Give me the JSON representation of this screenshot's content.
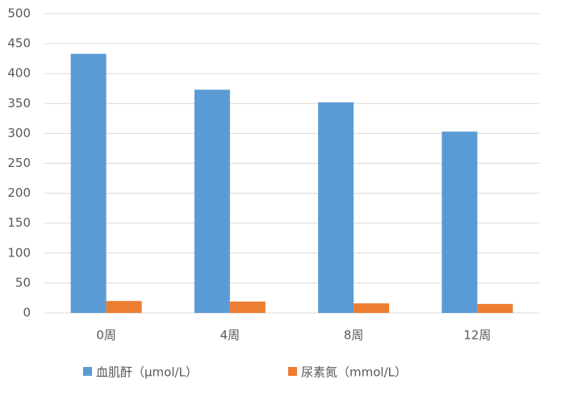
{
  "chart_data": {
    "type": "bar",
    "categories": [
      "0周",
      "4周",
      "8周",
      "12周"
    ],
    "series": [
      {
        "name": "血肌酐（μmol/L）",
        "color": "#5b9bd5",
        "values": [
          433,
          373,
          352,
          303
        ]
      },
      {
        "name": "尿素氮（mmol/L）",
        "color": "#ed7d31",
        "values": [
          20,
          19,
          16,
          15
        ]
      }
    ],
    "ylim": [
      0,
      500
    ],
    "yticks": [
      0,
      50,
      100,
      150,
      200,
      250,
      300,
      350,
      400,
      450,
      500
    ],
    "grid": true,
    "legend": "bottom"
  }
}
